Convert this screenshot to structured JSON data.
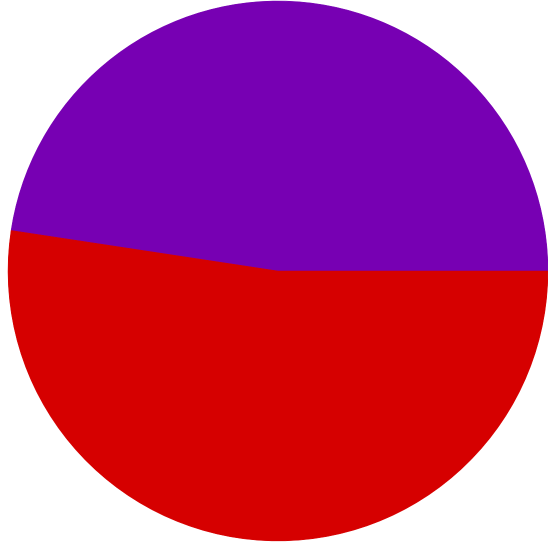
{
  "chart_data": {
    "type": "pie",
    "title": "",
    "legend": "none",
    "start_angle_deg": 0,
    "direction": "counterclockwise",
    "slices": [
      {
        "value": 47.6,
        "color": "#7700b3"
      },
      {
        "value": 52.4,
        "color": "#d60000"
      }
    ]
  }
}
